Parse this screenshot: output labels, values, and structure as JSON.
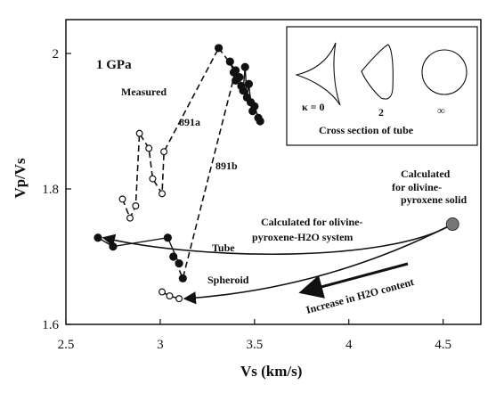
{
  "chart_data": {
    "type": "scatter",
    "xlabel": "Vs   (km/s)",
    "ylabel": "Vp/Vs",
    "xlim": [
      2.5,
      4.7
    ],
    "ylim": [
      1.6,
      2.05
    ],
    "x_ticks": [
      "2.5",
      "3",
      "3.5",
      "4",
      "4.5"
    ],
    "y_ticks": [
      "1.6",
      "1.8",
      "2"
    ],
    "grid": false,
    "legend": "none",
    "series": [
      {
        "name": "891a",
        "marker": "open-circle",
        "style": "dashed",
        "points": [
          [
            2.8,
            1.785
          ],
          [
            2.84,
            1.757
          ],
          [
            2.87,
            1.775
          ],
          [
            2.89,
            1.882
          ],
          [
            2.94,
            1.86
          ],
          [
            2.96,
            1.815
          ],
          [
            3.01,
            1.793
          ],
          [
            3.02,
            1.855
          ],
          [
            3.31,
            2.008
          ]
        ]
      },
      {
        "name": "891b",
        "marker": "filled-circle",
        "style": "dashed",
        "points": [
          [
            3.31,
            2.008
          ],
          [
            3.4,
            1.975
          ],
          [
            3.12,
            1.668
          ],
          [
            3.07,
            1.7
          ]
        ]
      },
      {
        "name": "Measured",
        "marker": "filled-circle",
        "style": "solid",
        "points": [
          [
            3.37,
            1.988
          ],
          [
            3.39,
            1.972
          ],
          [
            3.4,
            1.96
          ],
          [
            3.42,
            1.965
          ],
          [
            3.43,
            1.952
          ],
          [
            3.44,
            1.945
          ],
          [
            3.45,
            1.98
          ],
          [
            3.46,
            1.935
          ],
          [
            3.47,
            1.955
          ],
          [
            3.48,
            1.928
          ],
          [
            3.49,
            1.915
          ],
          [
            3.5,
            1.922
          ],
          [
            3.52,
            1.905
          ],
          [
            3.53,
            1.9
          ]
        ]
      },
      {
        "name": "Tube",
        "marker": "filled-circle",
        "style": "solid",
        "points": [
          [
            2.67,
            1.728
          ],
          [
            2.75,
            1.715
          ],
          [
            3.04,
            1.728
          ],
          [
            3.1,
            1.69
          ]
        ]
      },
      {
        "name": "Spheroid",
        "marker": "open-circle",
        "style": "dashed",
        "points": [
          [
            3.01,
            1.648
          ],
          [
            3.05,
            1.642
          ],
          [
            3.1,
            1.638
          ]
        ]
      }
    ],
    "calculated_solid_point": [
      4.55,
      1.748
    ],
    "annotations": [
      "1 GPa",
      "Measured",
      "891a",
      "891b",
      "Calculated",
      "for olivine-",
      "pyroxene solid",
      "Calculated for olivine-",
      "pyroxene-H2O system",
      "Tube",
      "Spheroid",
      "Increase in H2O content"
    ],
    "inset": {
      "labels": [
        "κ = 0",
        "2",
        "∞"
      ],
      "caption": "Cross section of tube"
    }
  }
}
